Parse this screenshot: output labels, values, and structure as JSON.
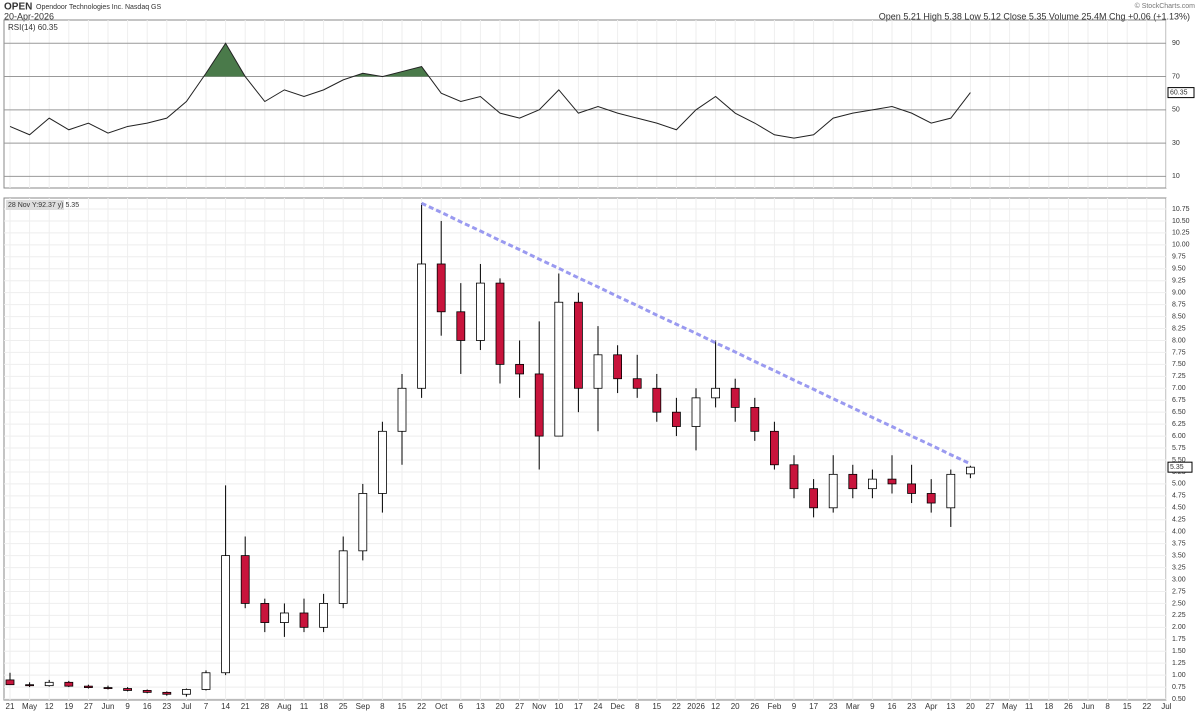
{
  "header": {
    "symbol": "OPEN",
    "name": "Opendoor Technologies Inc. Nasdaq GS",
    "date": "20-Apr-2026",
    "quote": "Open 5.21 High 5.38 Low 5.12 Close 5.35 Volume 25.4M Chg +0.06 (+1.13%)",
    "credit": "© StockCharts.com"
  },
  "chart_data": {
    "type": "candlestick",
    "categories": [
      "21",
      "May",
      "12",
      "19",
      "27",
      "Jun",
      "9",
      "16",
      "23",
      "Jul",
      "7",
      "14",
      "21",
      "28",
      "Aug",
      "11",
      "18",
      "25",
      "Sep",
      "8",
      "15",
      "22",
      "Oct",
      "6",
      "13",
      "20",
      "27",
      "Nov",
      "10",
      "17",
      "24",
      "Dec",
      "8",
      "15",
      "22",
      "2026",
      "12",
      "20",
      "26",
      "Feb",
      "9",
      "17",
      "23",
      "Mar",
      "9",
      "16",
      "23",
      "Apr",
      "13",
      "20",
      "27",
      "May",
      "11",
      "18",
      "26",
      "Jun",
      "8",
      "15",
      "22",
      "Jul"
    ],
    "open": [
      0.9,
      0.8,
      0.78,
      0.85,
      0.77,
      0.74,
      0.72,
      0.68,
      0.64,
      0.6,
      0.7,
      1.05,
      3.5,
      2.5,
      2.1,
      2.3,
      2.0,
      2.5,
      3.6,
      4.8,
      6.1,
      7.0,
      9.6,
      8.6,
      8.0,
      9.2,
      7.5,
      7.3,
      6.0,
      8.8,
      7.0,
      7.7,
      7.2,
      7.0,
      6.5,
      6.2,
      6.8,
      7.0,
      6.6,
      6.1,
      5.4,
      4.9,
      4.5,
      5.2,
      4.9,
      5.1,
      5.0,
      4.8,
      4.5,
      5.21,
      null,
      null,
      null,
      null,
      null,
      null,
      null,
      null,
      null,
      null
    ],
    "high": [
      1.05,
      0.85,
      0.9,
      0.88,
      0.8,
      0.78,
      0.75,
      0.7,
      0.66,
      0.72,
      1.1,
      4.97,
      3.9,
      2.6,
      2.5,
      2.6,
      2.7,
      3.9,
      5.0,
      6.3,
      7.3,
      10.87,
      10.5,
      9.2,
      9.6,
      9.3,
      8.0,
      8.4,
      9.4,
      9.0,
      8.3,
      7.9,
      7.7,
      7.3,
      6.8,
      7.0,
      8.0,
      7.2,
      6.8,
      6.3,
      5.6,
      5.1,
      5.6,
      5.4,
      5.3,
      5.6,
      5.4,
      5.1,
      5.3,
      5.38,
      null,
      null,
      null,
      null,
      null,
      null,
      null,
      null,
      null,
      null
    ],
    "low": [
      0.8,
      0.75,
      0.76,
      0.75,
      0.72,
      0.7,
      0.66,
      0.62,
      0.57,
      0.55,
      0.68,
      1.0,
      2.4,
      1.9,
      1.8,
      1.9,
      1.9,
      2.4,
      3.4,
      4.4,
      5.4,
      6.8,
      8.1,
      7.3,
      7.8,
      7.1,
      6.8,
      5.3,
      6.0,
      6.5,
      6.1,
      6.9,
      6.8,
      6.3,
      6.0,
      5.7,
      6.6,
      6.3,
      5.9,
      5.3,
      4.7,
      4.3,
      4.4,
      4.7,
      4.7,
      4.8,
      4.6,
      4.4,
      4.1,
      5.12,
      null,
      null,
      null,
      null,
      null,
      null,
      null,
      null,
      null,
      null
    ],
    "close": [
      0.8,
      0.78,
      0.85,
      0.77,
      0.74,
      0.72,
      0.68,
      0.64,
      0.6,
      0.7,
      1.05,
      3.5,
      2.5,
      2.1,
      2.3,
      2.0,
      2.5,
      3.6,
      4.8,
      6.1,
      7.0,
      9.6,
      8.6,
      8.0,
      9.2,
      7.5,
      7.3,
      6.0,
      8.8,
      7.0,
      7.7,
      7.2,
      7.0,
      6.5,
      6.2,
      6.8,
      7.0,
      6.6,
      6.1,
      5.4,
      4.9,
      4.5,
      5.2,
      4.9,
      5.1,
      5.0,
      4.8,
      4.6,
      5.2,
      5.35,
      null,
      null,
      null,
      null,
      null,
      null,
      null,
      null,
      null,
      null
    ],
    "up_color": "#ffffff",
    "down_color": "#c8143c",
    "grid": true,
    "price_label": "28 Nov Y:92.37 y) 5.35",
    "ylim": [
      0.48,
      10.98
    ],
    "yticks": [
      {
        "value": 0.5,
        "label": "0.50"
      },
      {
        "value": 0.75,
        "label": "0.75"
      },
      {
        "value": 1,
        "label": "1.00"
      },
      {
        "value": 1.25,
        "label": "1.25"
      },
      {
        "value": 1.5,
        "label": "1.50"
      },
      {
        "value": 1.75,
        "label": "1.75"
      },
      {
        "value": 2,
        "label": "2.00"
      },
      {
        "value": 2.25,
        "label": "2.25"
      },
      {
        "value": 2.5,
        "label": "2.50"
      },
      {
        "value": 2.75,
        "label": "2.75"
      },
      {
        "value": 3,
        "label": "3.00"
      },
      {
        "value": 3.25,
        "label": "3.25"
      },
      {
        "value": 3.5,
        "label": "3.50"
      },
      {
        "value": 3.75,
        "label": "3.75"
      },
      {
        "value": 4,
        "label": "4.00"
      },
      {
        "value": 4.25,
        "label": "4.25"
      },
      {
        "value": 4.5,
        "label": "4.50"
      },
      {
        "value": 4.75,
        "label": "4.75"
      },
      {
        "value": 5,
        "label": "5.00"
      },
      {
        "value": 5.25,
        "label": "5.25"
      },
      {
        "value": 5.5,
        "label": "5.50"
      },
      {
        "value": 5.75,
        "label": "5.75"
      },
      {
        "value": 6,
        "label": "6.00"
      },
      {
        "value": 6.25,
        "label": "6.25"
      },
      {
        "value": 6.5,
        "label": "6.50"
      },
      {
        "value": 6.75,
        "label": "6.75"
      },
      {
        "value": 7,
        "label": "7.00"
      },
      {
        "value": 7.25,
        "label": "7.25"
      },
      {
        "value": 7.5,
        "label": "7.50"
      },
      {
        "value": 7.75,
        "label": "7.75"
      },
      {
        "value": 8,
        "label": "8.00"
      },
      {
        "value": 8.25,
        "label": "8.25"
      },
      {
        "value": 8.5,
        "label": "8.50"
      },
      {
        "value": 8.75,
        "label": "8.75"
      },
      {
        "value": 9,
        "label": "9.00"
      },
      {
        "value": 9.25,
        "label": "9.25"
      },
      {
        "value": 9.5,
        "label": "9.50"
      },
      {
        "value": 9.75,
        "label": "9.75"
      },
      {
        "value": 10,
        "label": "10.00"
      },
      {
        "value": 10.25,
        "label": "10.25"
      },
      {
        "value": 10.5,
        "label": "10.50"
      },
      {
        "value": 10.75,
        "label": "10.75"
      }
    ],
    "trendline": {
      "color": "#9a9af0",
      "values": [
        null,
        null,
        null,
        null,
        null,
        null,
        null,
        null,
        null,
        null,
        null,
        null,
        null,
        null,
        null,
        null,
        null,
        null,
        null,
        null,
        null,
        10.87,
        10.68,
        10.48,
        10.29,
        10.09,
        9.9,
        9.7,
        9.51,
        9.31,
        9.12,
        8.92,
        8.73,
        8.53,
        8.34,
        8.15,
        7.95,
        7.76,
        7.56,
        7.37,
        7.17,
        6.98,
        6.78,
        6.59,
        6.39,
        6.2,
        6.0,
        5.81,
        5.61,
        5.42,
        null,
        null,
        null,
        null,
        null,
        null,
        null,
        null,
        null,
        null
      ]
    },
    "rsi": {
      "label": "RSI(14) 60.35",
      "color": "#222222",
      "fill": "#4a7a4a",
      "values": [
        40,
        35,
        45,
        38,
        42,
        36,
        40,
        42,
        45,
        55,
        72,
        90,
        70,
        55,
        62,
        58,
        62,
        68,
        72,
        70,
        73,
        76,
        60,
        55,
        58,
        48,
        45,
        50,
        62,
        48,
        52,
        48,
        45,
        42,
        38,
        50,
        58,
        48,
        42,
        35,
        33,
        35,
        45,
        48,
        50,
        52,
        48,
        42,
        45,
        60.35,
        null,
        null,
        null,
        null,
        null,
        null,
        null,
        null,
        null,
        null
      ],
      "ylim": [
        3,
        104
      ],
      "yticks": [
        10,
        30,
        50,
        70,
        90
      ]
    }
  }
}
